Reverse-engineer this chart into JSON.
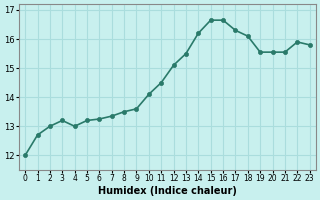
{
  "x": [
    0,
    1,
    2,
    3,
    4,
    5,
    6,
    7,
    8,
    9,
    10,
    11,
    12,
    13,
    14,
    15,
    16,
    17,
    18,
    19,
    20,
    21,
    22,
    23
  ],
  "y": [
    12.0,
    12.7,
    13.0,
    13.2,
    13.0,
    13.2,
    13.25,
    13.35,
    13.5,
    13.6,
    14.1,
    14.5,
    15.1,
    15.5,
    16.2,
    16.65,
    16.65,
    16.3,
    16.1,
    15.55,
    15.55,
    15.55,
    15.9,
    15.8
  ],
  "xlabel": "Humidex (Indice chaleur)",
  "ylim": [
    11.5,
    17.2
  ],
  "xlim": [
    -0.5,
    23.5
  ],
  "yticks": [
    12,
    13,
    14,
    15,
    16,
    17
  ],
  "xtick_labels": [
    "0",
    "1",
    "2",
    "3",
    "4",
    "5",
    "6",
    "7",
    "8",
    "9",
    "10",
    "11",
    "12",
    "13",
    "14",
    "15",
    "16",
    "17",
    "18",
    "19",
    "20",
    "21",
    "22",
    "23"
  ],
  "bg_color": "#c8f0ee",
  "grid_color": "#aadddd",
  "line_color": "#2a7a6a",
  "marker_color": "#2a7a6a",
  "line_width": 1.2,
  "marker_size": 3
}
